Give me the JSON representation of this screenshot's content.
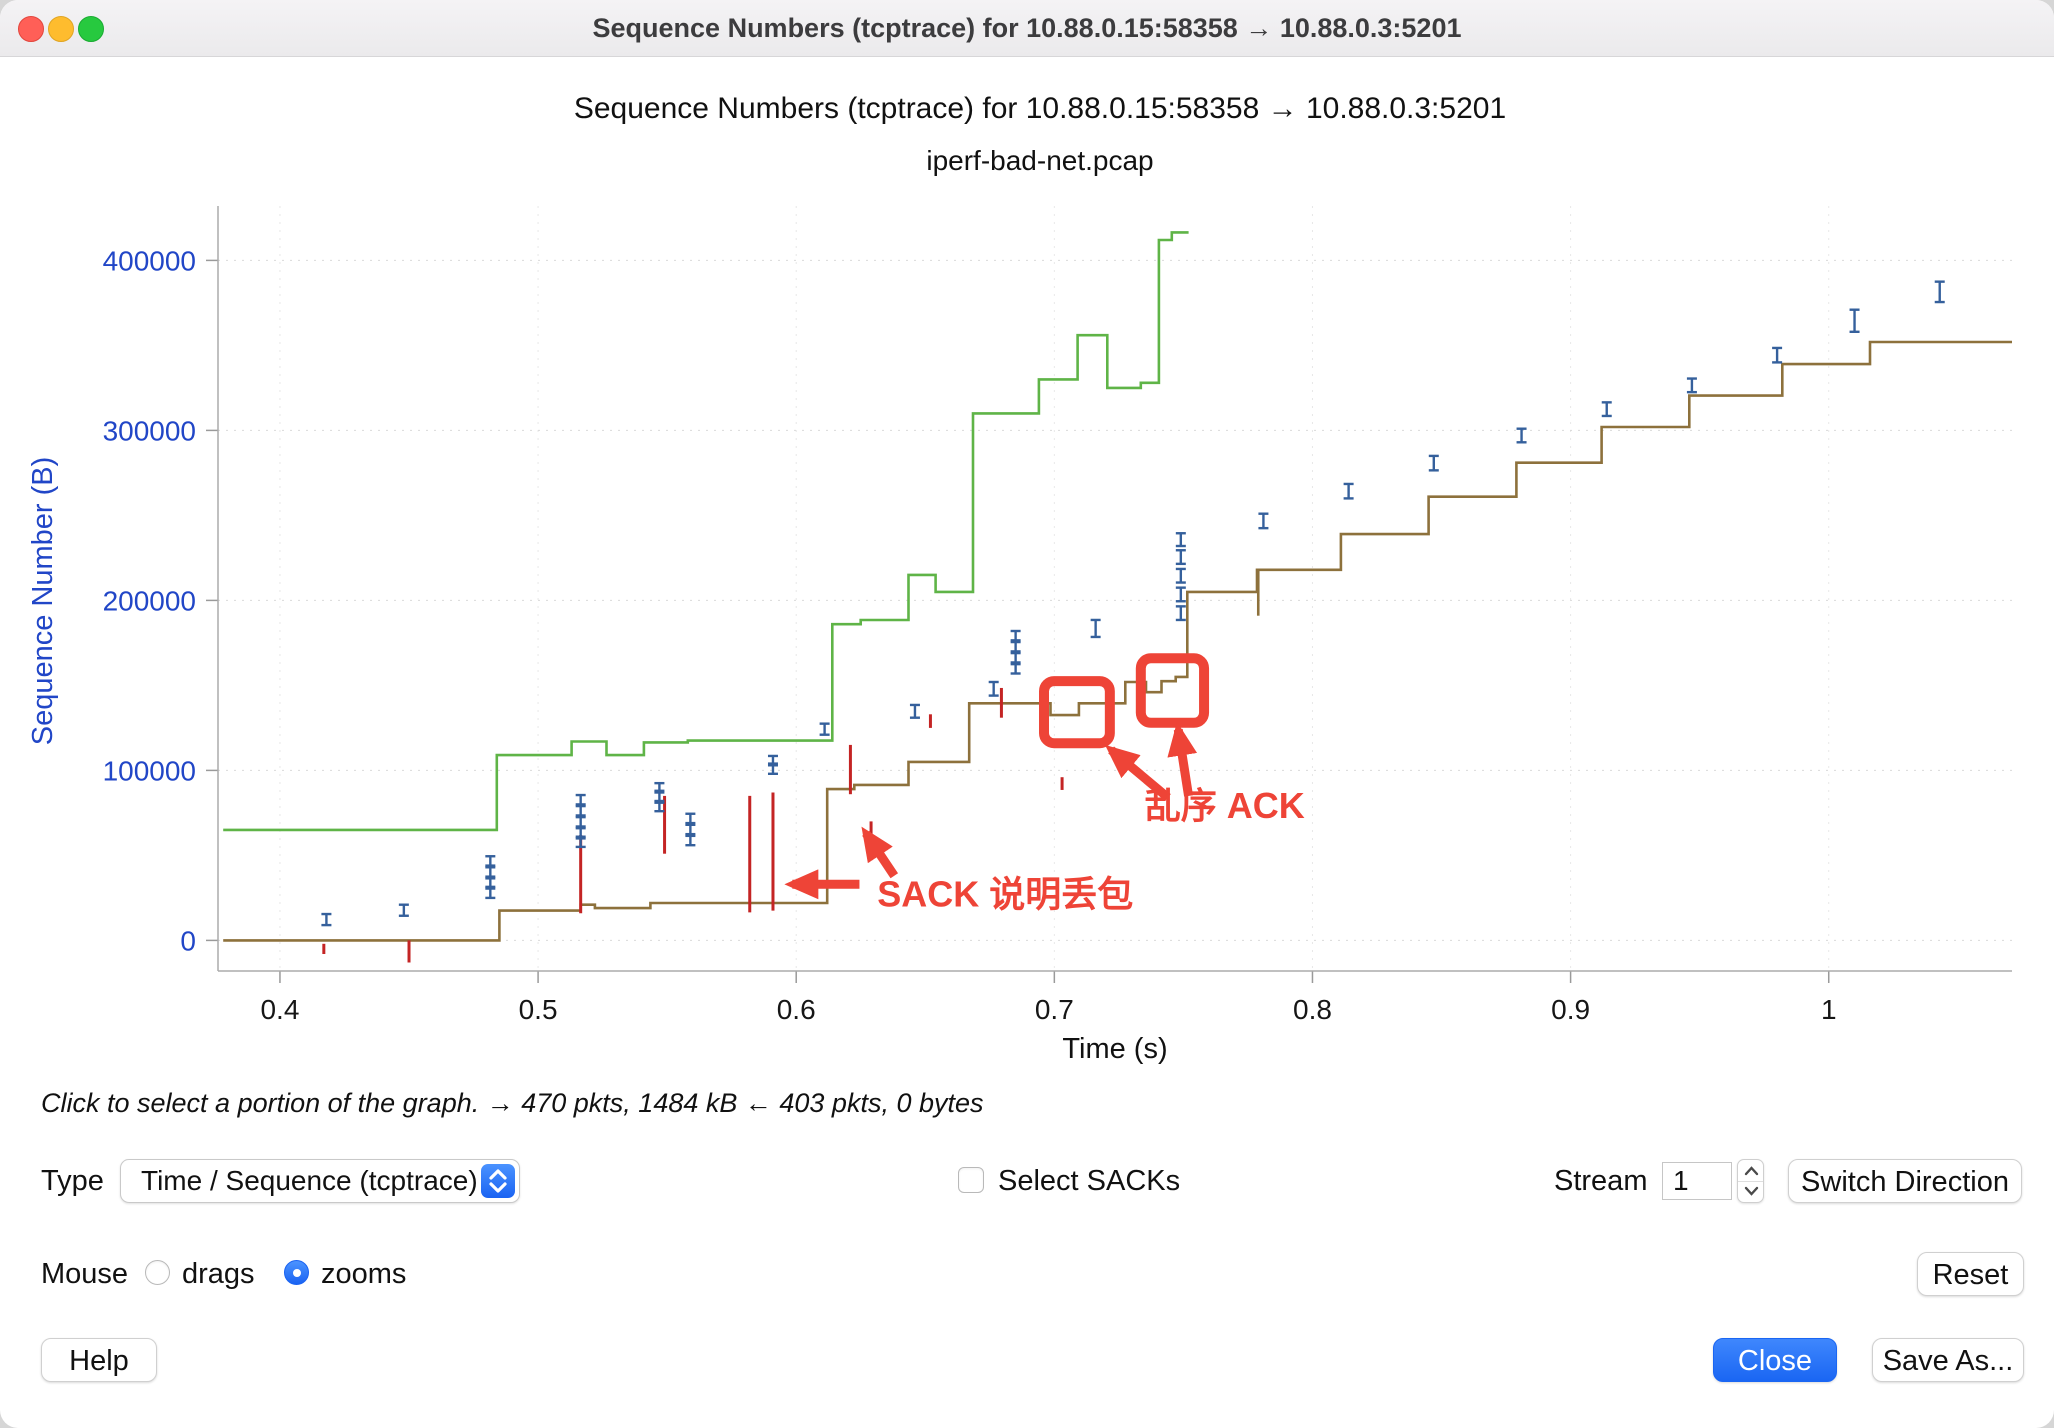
{
  "window": {
    "title": "Sequence Numbers (tcptrace) for 10.88.0.15:58358 → 10.88.0.3:5201"
  },
  "hint": "Click to select a portion of the graph. → 470 pkts, 1484 kB ← 403 pkts, 0 bytes",
  "controls": {
    "type_label": "Type",
    "type_value": "Time / Sequence (tcptrace)",
    "select_sacks_label": "Select SACKs",
    "stream_label": "Stream",
    "stream_value": "1",
    "switch_direction_label": "Switch Direction",
    "mouse_label": "Mouse",
    "drags_label": "drags",
    "zooms_label": "zooms",
    "reset_label": "Reset",
    "help_label": "Help",
    "close_label": "Close",
    "save_as_label": "Save As..."
  },
  "chart_data": {
    "type": "line",
    "title": "Sequence Numbers (tcptrace) for 10.88.0.15:58358 → 10.88.0.3:5201",
    "subtitle": "iperf-bad-net.pcap",
    "xlabel": "Time (s)",
    "ylabel": "Sequence Number (B)",
    "xlim": [
      0.376,
      1.071
    ],
    "ylim": [
      -18000,
      432000
    ],
    "x_ticks": [
      0.4,
      0.5,
      0.6,
      0.7,
      0.8,
      0.9,
      1
    ],
    "x_tick_labels": [
      "0.4",
      "0.5",
      "0.6",
      "0.7",
      "0.8",
      "0.9",
      "1"
    ],
    "y_ticks": [
      0,
      100000,
      200000,
      300000,
      400000
    ],
    "axis_color": "#2146c7",
    "grid": true,
    "legend": "none",
    "series": [
      {
        "name": "receive-window-line",
        "color": "#5fb447",
        "points": [
          [
            0.378,
            65000
          ],
          [
            0.484,
            65000
          ],
          [
            0.484,
            109000
          ],
          [
            0.513,
            109000
          ],
          [
            0.513,
            117000
          ],
          [
            0.5265,
            117000
          ],
          [
            0.5265,
            109000
          ],
          [
            0.541,
            109000
          ],
          [
            0.541,
            116500
          ],
          [
            0.558,
            116500
          ],
          [
            0.558,
            117500
          ],
          [
            0.614,
            117500
          ],
          [
            0.614,
            186000
          ],
          [
            0.625,
            186000
          ],
          [
            0.625,
            188500
          ],
          [
            0.6435,
            188500
          ],
          [
            0.6435,
            215000
          ],
          [
            0.654,
            215000
          ],
          [
            0.654,
            205000
          ],
          [
            0.6685,
            205000
          ],
          [
            0.6685,
            310000
          ],
          [
            0.694,
            310000
          ],
          [
            0.694,
            330000
          ],
          [
            0.709,
            330000
          ],
          [
            0.709,
            356000
          ],
          [
            0.7205,
            356000
          ],
          [
            0.7205,
            325000
          ],
          [
            0.7335,
            325000
          ],
          [
            0.7335,
            328000
          ],
          [
            0.7405,
            328000
          ],
          [
            0.7405,
            412000
          ],
          [
            0.7455,
            412000
          ],
          [
            0.7455,
            416500
          ],
          [
            0.752,
            416500
          ]
        ]
      },
      {
        "name": "ack-line",
        "color": "#8d713c",
        "points": [
          [
            0.378,
            0
          ],
          [
            0.485,
            0
          ],
          [
            0.485,
            17500
          ],
          [
            0.5165,
            17500
          ],
          [
            0.5165,
            21000
          ],
          [
            0.522,
            21000
          ],
          [
            0.522,
            19000
          ],
          [
            0.5435,
            19000
          ],
          [
            0.5435,
            22000
          ],
          [
            0.612,
            22000
          ],
          [
            0.612,
            89000
          ],
          [
            0.6225,
            89000
          ],
          [
            0.6225,
            91500
          ],
          [
            0.6435,
            91500
          ],
          [
            0.6435,
            105000
          ],
          [
            0.667,
            105000
          ],
          [
            0.667,
            139500
          ],
          [
            0.6985,
            139500
          ],
          [
            0.6985,
            132500
          ],
          [
            0.7095,
            132500
          ],
          [
            0.7095,
            139500
          ],
          [
            0.7275,
            139500
          ],
          [
            0.7275,
            152000
          ],
          [
            0.7355,
            152000
          ],
          [
            0.7355,
            146000
          ],
          [
            0.7415,
            146000
          ],
          [
            0.7415,
            152500
          ],
          [
            0.747,
            152500
          ],
          [
            0.747,
            155000
          ],
          [
            0.7515,
            155000
          ],
          [
            0.7515,
            205000
          ],
          [
            0.7785,
            205000
          ],
          [
            0.7785,
            218000
          ],
          [
            0.811,
            218000
          ],
          [
            0.811,
            239000
          ],
          [
            0.845,
            239000
          ],
          [
            0.845,
            261000
          ],
          [
            0.879,
            261000
          ],
          [
            0.879,
            281000
          ],
          [
            0.912,
            281000
          ],
          [
            0.912,
            302000
          ],
          [
            0.946,
            302000
          ],
          [
            0.946,
            320500
          ],
          [
            0.982,
            320500
          ],
          [
            0.982,
            339000
          ],
          [
            1.016,
            339000
          ],
          [
            1.016,
            352000
          ],
          [
            1.071,
            352000
          ]
        ]
      }
    ],
    "ack_spikes": [
      [
        0.779,
        191000,
        218000
      ]
    ],
    "segments": {
      "name": "tcp-segment-marks",
      "color": "#35609c",
      "marks": [
        [
          0.418,
          9000,
          15500
        ],
        [
          0.448,
          14500,
          21000
        ],
        [
          0.4815,
          25000,
          30500
        ],
        [
          0.4815,
          31500,
          36500
        ],
        [
          0.4815,
          37500,
          43000
        ],
        [
          0.4815,
          44000,
          49500
        ],
        [
          0.5165,
          55000,
          60000
        ],
        [
          0.5165,
          61000,
          66000
        ],
        [
          0.5165,
          67000,
          72500
        ],
        [
          0.5165,
          73500,
          79000
        ],
        [
          0.5165,
          80000,
          85500
        ],
        [
          0.547,
          76000,
          81000
        ],
        [
          0.547,
          82000,
          87000
        ],
        [
          0.547,
          88000,
          92500
        ],
        [
          0.559,
          56000,
          61500
        ],
        [
          0.559,
          62500,
          68000
        ],
        [
          0.559,
          69000,
          74500
        ],
        [
          0.591,
          98000,
          103000
        ],
        [
          0.591,
          104000,
          108500
        ],
        [
          0.611,
          121000,
          127500
        ],
        [
          0.646,
          131000,
          138500
        ],
        [
          0.6765,
          144000,
          152000
        ],
        [
          0.685,
          157000,
          162500
        ],
        [
          0.685,
          163500,
          169000
        ],
        [
          0.685,
          170000,
          175500
        ],
        [
          0.685,
          176500,
          182000
        ],
        [
          0.716,
          178500,
          188500
        ],
        [
          0.749,
          188500,
          196500
        ],
        [
          0.749,
          199500,
          207500
        ],
        [
          0.749,
          210500,
          218500
        ],
        [
          0.749,
          221500,
          229500
        ],
        [
          0.749,
          232000,
          239500
        ],
        [
          0.781,
          242500,
          251000
        ],
        [
          0.814,
          260000,
          268500
        ],
        [
          0.847,
          276500,
          285000
        ],
        [
          0.881,
          293000,
          301000
        ],
        [
          0.914,
          308500,
          316500
        ],
        [
          0.947,
          322500,
          330500
        ],
        [
          0.98,
          340000,
          348500
        ],
        [
          1.01,
          358000,
          371000
        ],
        [
          1.043,
          375500,
          387500
        ]
      ]
    },
    "sacks": {
      "name": "sack-marks",
      "color": "#c42424",
      "marks": [
        [
          0.417,
          -8000,
          -2000
        ],
        [
          0.45,
          -13000,
          0
        ],
        [
          0.5165,
          16000,
          62000
        ],
        [
          0.549,
          51000,
          85000
        ],
        [
          0.582,
          16500,
          85000
        ],
        [
          0.591,
          17500,
          87000
        ],
        [
          0.621,
          86000,
          115000
        ],
        [
          0.629,
          55000,
          70000
        ],
        [
          0.652,
          125000,
          133000
        ],
        [
          0.6795,
          131000,
          148500
        ],
        [
          0.703,
          88500,
          96000
        ]
      ]
    },
    "annotations": {
      "color": "#ee4437",
      "boxes": [
        {
          "x0": 0.696,
          "x1": 0.7215,
          "y0": 116000,
          "y1": 152500
        },
        {
          "x0": 0.7335,
          "x1": 0.758,
          "y0": 128000,
          "y1": 166000
        }
      ],
      "labels": [
        {
          "text": "乱序 ACK",
          "x": 0.766,
          "y": 72000
        },
        {
          "text": "SACK 说明丢包",
          "x": 0.681,
          "y": 20000
        }
      ],
      "arrows": [
        {
          "x0": 0.744,
          "y0": 84000,
          "x1": 0.722,
          "y1": 112000
        },
        {
          "x0": 0.752,
          "y0": 85000,
          "x1": 0.748,
          "y1": 124000
        },
        {
          "x0": 0.6245,
          "y0": 33000,
          "x1": 0.5985,
          "y1": 33000
        },
        {
          "x0": 0.638,
          "y0": 38000,
          "x1": 0.627,
          "y1": 63000
        }
      ]
    }
  }
}
